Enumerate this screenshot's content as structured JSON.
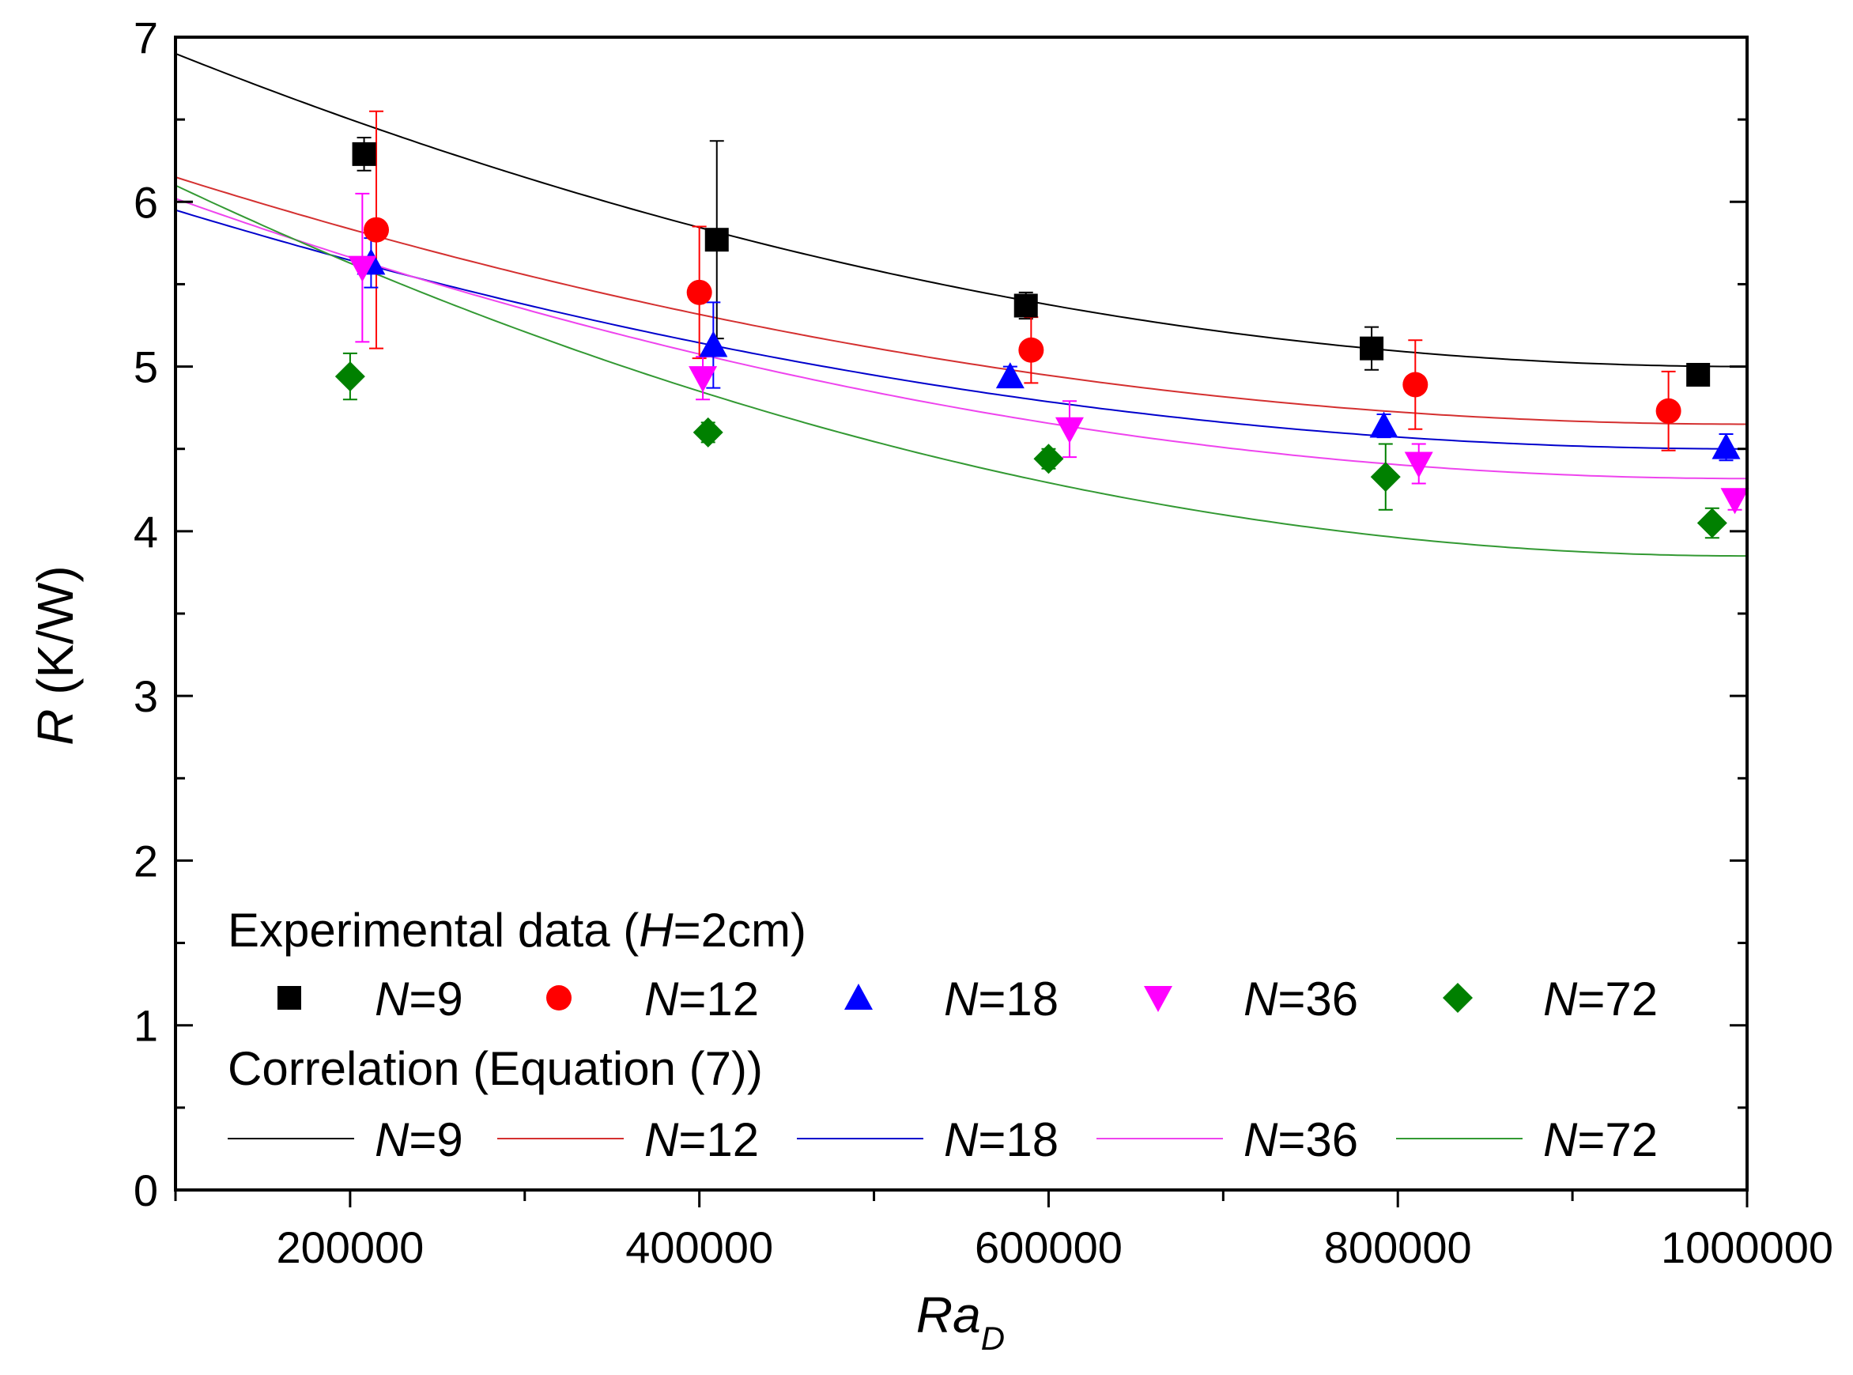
{
  "chart_data": {
    "type": "scatter",
    "xlabel": "Ra",
    "xlabel_subscript": "D",
    "ylabel_italic": "R",
    "ylabel_unit": " (K/W)",
    "xlim": [
      100000,
      1000000
    ],
    "ylim": [
      0,
      7
    ],
    "xticks": [
      200000,
      400000,
      600000,
      800000,
      1000000
    ],
    "xtick_labels": [
      "200000",
      "400000",
      "600000",
      "800000",
      "1000000"
    ],
    "yticks": [
      0,
      1,
      2,
      3,
      4,
      5,
      6,
      7
    ],
    "ytick_labels": [
      "0",
      "1",
      "2",
      "3",
      "4",
      "5",
      "6",
      "7"
    ],
    "grid": false,
    "legend": {
      "position": "bottom-left",
      "experimental_title_pre": "Experimental data (",
      "experimental_title_ital": "H",
      "experimental_title_post": "=2cm)",
      "correlation_title": "Correlation (Equation (7))"
    },
    "series": [
      {
        "name": "N=9",
        "label_ital": "N",
        "label_rest": "=9",
        "color": "#000000",
        "line_color": "#000000",
        "marker": "square",
        "x": [
          208000,
          410000,
          587000,
          785000,
          972000
        ],
        "y": [
          6.29,
          5.77,
          5.37,
          5.11,
          4.95
        ],
        "err": [
          0.1,
          0.6,
          0.08,
          0.13,
          0.04
        ],
        "fit_a": 1.9,
        "fit_b": 5.0
      },
      {
        "name": "N=12",
        "label_ital": "N",
        "label_rest": "=12",
        "color": "#ff0000",
        "line_color": "#d43030",
        "marker": "circle",
        "x": [
          215000,
          400000,
          590000,
          810000,
          955000
        ],
        "y": [
          5.83,
          5.45,
          5.1,
          4.89,
          4.73
        ],
        "err": [
          0.72,
          0.4,
          0.2,
          0.27,
          0.24
        ],
        "fit_a": 1.5,
        "fit_b": 4.65
      },
      {
        "name": "N=18",
        "label_ital": "N",
        "label_rest": "=18",
        "color": "#0000ff",
        "line_color": "#0000cc",
        "marker": "triangle-up",
        "x": [
          212000,
          408000,
          578000,
          792000,
          988000
        ],
        "y": [
          5.63,
          5.13,
          4.94,
          4.64,
          4.51
        ],
        "err": [
          0.15,
          0.26,
          0.06,
          0.07,
          0.08
        ],
        "fit_a": 1.45,
        "fit_b": 4.5
      },
      {
        "name": "N=36",
        "label_ital": "N",
        "label_rest": "=36",
        "color": "#ff00ff",
        "line_color": "#ee44ee",
        "marker": "triangle-down",
        "x": [
          207000,
          402000,
          612000,
          812000,
          993000
        ],
        "y": [
          5.6,
          4.93,
          4.62,
          4.41,
          4.19
        ],
        "err": [
          0.45,
          0.13,
          0.17,
          0.12,
          0.06
        ],
        "fit_a": 1.7,
        "fit_b": 4.32
      },
      {
        "name": "N=72",
        "label_ital": "N",
        "label_rest": "=72",
        "color": "#008000",
        "line_color": "#339933",
        "marker": "diamond",
        "x": [
          200000,
          405000,
          600000,
          793000,
          980000
        ],
        "y": [
          4.94,
          4.6,
          4.44,
          4.33,
          4.05
        ],
        "err": [
          0.14,
          0.06,
          0.06,
          0.2,
          0.09
        ],
        "fit_a": 2.25,
        "fit_b": 3.85
      }
    ]
  }
}
